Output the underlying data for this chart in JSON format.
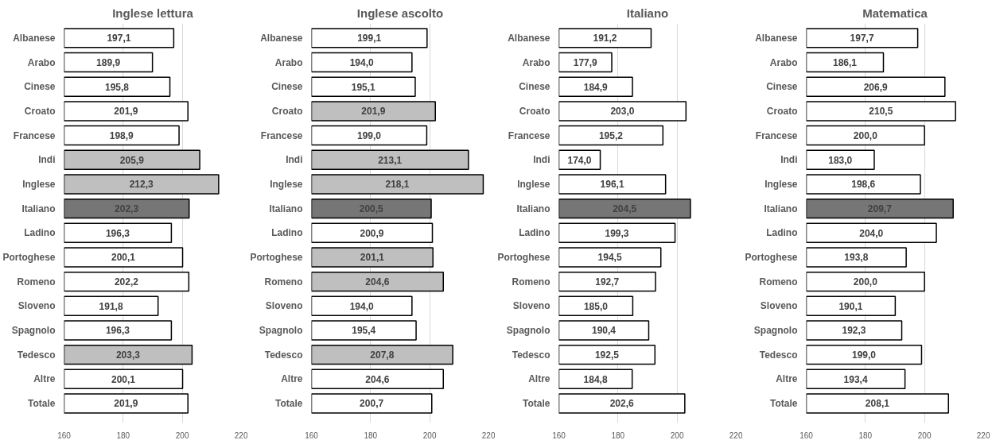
{
  "chart_data": [
    {
      "type": "bar",
      "orientation": "horizontal",
      "title": "Inglese lettura",
      "categories": [
        "Albanese",
        "Arabo",
        "Cinese",
        "Croato",
        "Francese",
        "Indi",
        "Inglese",
        "Italiano",
        "Ladino",
        "Portoghese",
        "Romeno",
        "Sloveno",
        "Spagnolo",
        "Tedesco",
        "Altre",
        "Totale"
      ],
      "series": [
        {
          "values": [
            197.1,
            189.9,
            195.8,
            201.9,
            198.9,
            205.9,
            212.3,
            202.3,
            196.3,
            200.1,
            202.2,
            191.8,
            196.3,
            203.3,
            200.1,
            201.9
          ],
          "value_labels": [
            "197,1",
            "189,9",
            "195,8",
            "201,9",
            "198,9",
            "205,9",
            "212,3",
            "202,3",
            "196,3",
            "200,1",
            "202,2",
            "191,8",
            "196,3",
            "203,3",
            "200,1",
            "201,9"
          ],
          "colors": [
            "#ffffff",
            "#ffffff",
            "#ffffff",
            "#ffffff",
            "#ffffff",
            "#bfbfbf",
            "#bfbfbf",
            "#767676",
            "#ffffff",
            "#ffffff",
            "#ffffff",
            "#ffffff",
            "#ffffff",
            "#bfbfbf",
            "#ffffff",
            "#ffffff"
          ]
        }
      ],
      "xlim": [
        160,
        220
      ],
      "xticks": [
        160,
        180,
        200,
        220
      ],
      "grid": "x"
    },
    {
      "type": "bar",
      "orientation": "horizontal",
      "title": "Inglese ascolto",
      "categories": [
        "Albanese",
        "Arabo",
        "Cinese",
        "Croato",
        "Francese",
        "Indi",
        "Inglese",
        "Italiano",
        "Ladino",
        "Portoghese",
        "Romeno",
        "Sloveno",
        "Spagnolo",
        "Tedesco",
        "Altre",
        "Totale"
      ],
      "series": [
        {
          "values": [
            199.1,
            194.0,
            195.1,
            201.9,
            199.0,
            213.1,
            218.1,
            200.5,
            200.9,
            201.1,
            204.6,
            194.0,
            195.4,
            207.8,
            204.6,
            200.7
          ],
          "value_labels": [
            "199,1",
            "194,0",
            "195,1",
            "201,9",
            "199,0",
            "213,1",
            "218,1",
            "200,5",
            "200,9",
            "201,1",
            "204,6",
            "194,0",
            "195,4",
            "207,8",
            "204,6",
            "200,7"
          ],
          "colors": [
            "#ffffff",
            "#ffffff",
            "#ffffff",
            "#bfbfbf",
            "#ffffff",
            "#bfbfbf",
            "#bfbfbf",
            "#767676",
            "#ffffff",
            "#bfbfbf",
            "#bfbfbf",
            "#ffffff",
            "#ffffff",
            "#bfbfbf",
            "#ffffff",
            "#ffffff"
          ]
        }
      ],
      "xlim": [
        160,
        220
      ],
      "xticks": [
        160,
        180,
        200,
        220
      ],
      "grid": "x"
    },
    {
      "type": "bar",
      "orientation": "horizontal",
      "title": "Italiano",
      "categories": [
        "Albanese",
        "Arabo",
        "Cinese",
        "Croato",
        "Francese",
        "Indi",
        "Inglese",
        "Italiano",
        "Ladino",
        "Portoghese",
        "Romeno",
        "Sloveno",
        "Spagnolo",
        "Tedesco",
        "Altre",
        "Totale"
      ],
      "series": [
        {
          "values": [
            191.2,
            177.9,
            184.9,
            203.0,
            195.2,
            174.0,
            196.1,
            204.5,
            199.3,
            194.5,
            192.7,
            185.0,
            190.4,
            192.5,
            184.8,
            202.6
          ],
          "value_labels": [
            "191,2",
            "177,9",
            "184,9",
            "203,0",
            "195,2",
            "174,0",
            "196,1",
            "204,5",
            "199,3",
            "194,5",
            "192,7",
            "185,0",
            "190,4",
            "192,5",
            "184,8",
            "202,6"
          ],
          "colors": [
            "#ffffff",
            "#ffffff",
            "#ffffff",
            "#ffffff",
            "#ffffff",
            "#ffffff",
            "#ffffff",
            "#767676",
            "#ffffff",
            "#ffffff",
            "#ffffff",
            "#ffffff",
            "#ffffff",
            "#ffffff",
            "#ffffff",
            "#ffffff"
          ]
        }
      ],
      "xlim": [
        160,
        220
      ],
      "xticks": [
        160,
        180,
        200,
        220
      ],
      "grid": "x"
    },
    {
      "type": "bar",
      "orientation": "horizontal",
      "title": "Matematica",
      "categories": [
        "Albanese",
        "Arabo",
        "Cinese",
        "Croato",
        "Francese",
        "Indi",
        "Inglese",
        "Italiano",
        "Ladino",
        "Portoghese",
        "Romeno",
        "Sloveno",
        "Spagnolo",
        "Tedesco",
        "Altre",
        "Totale"
      ],
      "series": [
        {
          "values": [
            197.7,
            186.1,
            206.9,
            210.5,
            200.0,
            183.0,
            198.6,
            209.7,
            204.0,
            193.8,
            200.0,
            190.1,
            192.3,
            199.0,
            193.4,
            208.1
          ],
          "value_labels": [
            "197,7",
            "186,1",
            "206,9",
            "210,5",
            "200,0",
            "183,0",
            "198,6",
            "209,7",
            "204,0",
            "193,8",
            "200,0",
            "190,1",
            "192,3",
            "199,0",
            "193,4",
            "208,1"
          ],
          "colors": [
            "#ffffff",
            "#ffffff",
            "#ffffff",
            "#ffffff",
            "#ffffff",
            "#ffffff",
            "#ffffff",
            "#767676",
            "#ffffff",
            "#ffffff",
            "#ffffff",
            "#ffffff",
            "#ffffff",
            "#ffffff",
            "#ffffff",
            "#ffffff"
          ]
        }
      ],
      "xlim": [
        160,
        220
      ],
      "xticks": [
        160,
        180,
        200,
        220
      ],
      "grid": "x"
    }
  ]
}
